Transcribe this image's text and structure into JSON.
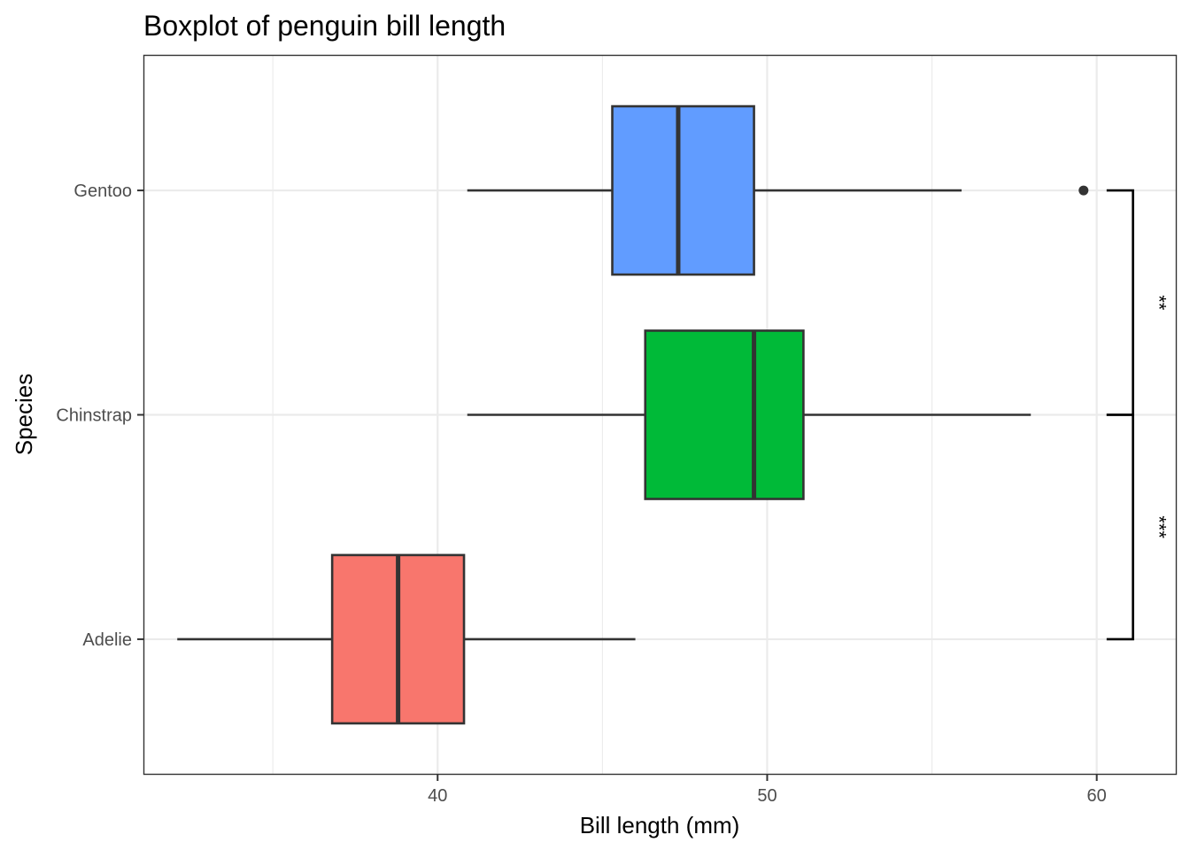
{
  "chart_data": {
    "type": "boxplot",
    "orientation": "horizontal",
    "title": "Boxplot of penguin bill length",
    "xlabel": "Bill length (mm)",
    "ylabel": "Species",
    "xlim": [
      31.1,
      62.4
    ],
    "x_ticks": [
      40,
      50,
      60
    ],
    "x_minor_ticks": [
      35,
      45,
      55
    ],
    "categories": [
      "Adelie",
      "Chinstrap",
      "Gentoo"
    ],
    "grid": true,
    "series": [
      {
        "category": "Adelie",
        "color": "#F8766D",
        "whisker_low": 32.1,
        "q1": 36.8,
        "median": 38.8,
        "q3": 40.8,
        "whisker_high": 46.0,
        "outliers": []
      },
      {
        "category": "Chinstrap",
        "color": "#00BA38",
        "whisker_low": 40.9,
        "q1": 46.3,
        "median": 49.6,
        "q3": 51.1,
        "whisker_high": 58.0,
        "outliers": []
      },
      {
        "category": "Gentoo",
        "color": "#619CFF",
        "whisker_low": 40.9,
        "q1": 45.3,
        "median": 47.3,
        "q3": 49.6,
        "whisker_high": 55.9,
        "outliers": [
          59.6
        ]
      }
    ],
    "significance": [
      {
        "from": "Gentoo",
        "to": "Chinstrap",
        "label": "**"
      },
      {
        "from": "Chinstrap",
        "to": "Adelie",
        "label": "***"
      }
    ]
  }
}
